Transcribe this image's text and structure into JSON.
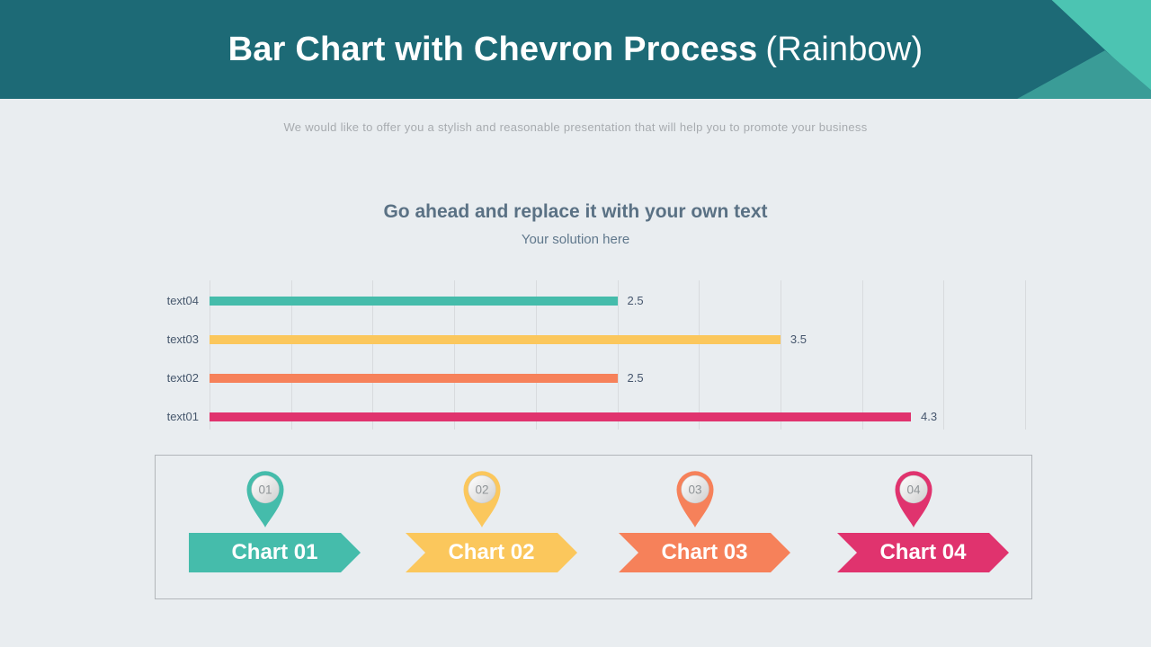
{
  "header": {
    "title_bold": "Bar Chart with Chevron Process",
    "title_light": "(Rainbow)",
    "bg_color": "#1d6a76",
    "corner_green": "#4cc4b2",
    "corner_teal": "#3a9c97"
  },
  "subtitle": "We would like to offer you a stylish and reasonable presentation that will help you to promote your business",
  "section": {
    "title": "Go ahead and replace it with your own text",
    "subtitle": "Your solution here"
  },
  "chart_data": {
    "type": "bar",
    "orientation": "horizontal",
    "title": "Go ahead and replace it with your own text",
    "subtitle": "Your solution here",
    "categories": [
      "text04",
      "text03",
      "text02",
      "text01"
    ],
    "values": [
      2.5,
      3.5,
      2.5,
      4.3
    ],
    "value_labels": [
      "2.5",
      "3.5",
      "2.5",
      "4.3"
    ],
    "colors": [
      "#45bcab",
      "#fbc75c",
      "#f6815a",
      "#e0336e"
    ],
    "xlim": [
      0,
      5
    ],
    "gridline_step": 0.5,
    "grid": true,
    "legend": false,
    "xlabel": "",
    "ylabel": ""
  },
  "process": {
    "items": [
      {
        "number": "01",
        "label": "Chart 01",
        "color": "#45bcab"
      },
      {
        "number": "02",
        "label": "Chart 02",
        "color": "#fbc75c"
      },
      {
        "number": "03",
        "label": "Chart 03",
        "color": "#f6815a"
      },
      {
        "number": "04",
        "label": "Chart 04",
        "color": "#e0336e"
      }
    ]
  }
}
